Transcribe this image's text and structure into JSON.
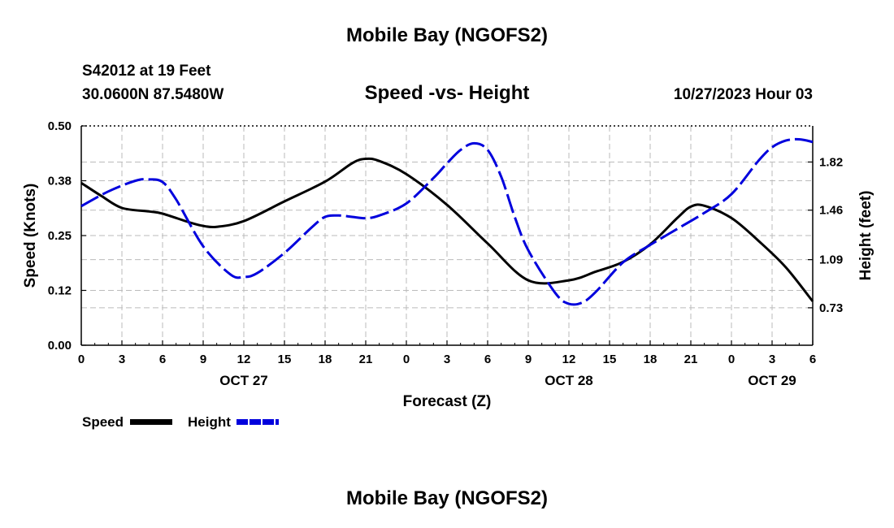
{
  "header": {
    "title": "Mobile Bay (NGOFS2)",
    "station": "S42012 at 19 Feet",
    "coords": "30.0600N  87.5480W",
    "chart_title": "Speed -vs- Height",
    "datetime": "10/27/2023 Hour 03"
  },
  "footer": {
    "title": "Mobile Bay (NGOFS2)"
  },
  "legend": {
    "speed_label": "Speed",
    "height_label": "Height",
    "speed_color": "#000000",
    "height_color": "#0000dd"
  },
  "chart_data": {
    "type": "line",
    "title": "Speed -vs- Height",
    "xlabel": "Forecast (Z)",
    "ylabel": "Speed (Knots)",
    "y2label": "Height (feet)",
    "xlim": [
      0,
      54
    ],
    "ylim": [
      0,
      0.5
    ],
    "y2lim": [
      0.45,
      2.09
    ],
    "x_ticks": [
      0,
      3,
      6,
      9,
      12,
      15,
      18,
      21,
      24,
      27,
      30,
      33,
      36,
      39,
      42,
      45,
      48,
      51,
      54
    ],
    "x_tick_labels": [
      "0",
      "3",
      "6",
      "9",
      "12",
      "15",
      "18",
      "21",
      "0",
      "3",
      "6",
      "9",
      "12",
      "15",
      "18",
      "21",
      "0",
      "3",
      "6"
    ],
    "date_labels": [
      {
        "x": 12,
        "label": "OCT 27"
      },
      {
        "x": 36,
        "label": "OCT 28"
      },
      {
        "x": 51,
        "label": "OCT 29"
      }
    ],
    "y_ticks": [
      0.0,
      0.125,
      0.25,
      0.375,
      0.5
    ],
    "y_tick_labels": [
      "0.00",
      "0.12",
      "0.25",
      "0.38",
      "0.50"
    ],
    "y2_ticks": [
      0.73,
      1.09,
      1.46,
      1.82
    ],
    "y2_tick_labels": [
      "0.73",
      "1.09",
      "1.46",
      "1.82"
    ],
    "grid": true,
    "series": [
      {
        "name": "Speed",
        "axis": "left",
        "style": "solid",
        "x": [
          0,
          1.5,
          3,
          5,
          6,
          8,
          9,
          10,
          12,
          15,
          18,
          20,
          21,
          22,
          24,
          27,
          30,
          33,
          36,
          38,
          40,
          42,
          44,
          45,
          46,
          48,
          50,
          52,
          54
        ],
        "values": [
          0.37,
          0.34,
          0.313,
          0.305,
          0.3,
          0.28,
          0.272,
          0.27,
          0.283,
          0.328,
          0.373,
          0.415,
          0.425,
          0.42,
          0.39,
          0.32,
          0.232,
          0.148,
          0.148,
          0.168,
          0.19,
          0.23,
          0.29,
          0.316,
          0.318,
          0.29,
          0.238,
          0.178,
          0.1
        ]
      },
      {
        "name": "Height",
        "axis": "right",
        "style": "dashed",
        "x": [
          0,
          2,
          4,
          5,
          6,
          7,
          9,
          11,
          12,
          13,
          15,
          17,
          18,
          19,
          20,
          21,
          22,
          24,
          26,
          27,
          28,
          29,
          30,
          31,
          32,
          33,
          35,
          36,
          37,
          38,
          40,
          42,
          44,
          46,
          48,
          50,
          51,
          52,
          53,
          54
        ],
        "values": [
          1.49,
          1.6,
          1.68,
          1.69,
          1.67,
          1.54,
          1.19,
          0.98,
          0.96,
          0.99,
          1.14,
          1.33,
          1.41,
          1.42,
          1.41,
          1.4,
          1.42,
          1.51,
          1.7,
          1.81,
          1.91,
          1.96,
          1.91,
          1.71,
          1.41,
          1.16,
          0.84,
          0.76,
          0.77,
          0.85,
          1.07,
          1.2,
          1.32,
          1.44,
          1.58,
          1.83,
          1.93,
          1.98,
          1.99,
          1.97
        ]
      }
    ]
  }
}
